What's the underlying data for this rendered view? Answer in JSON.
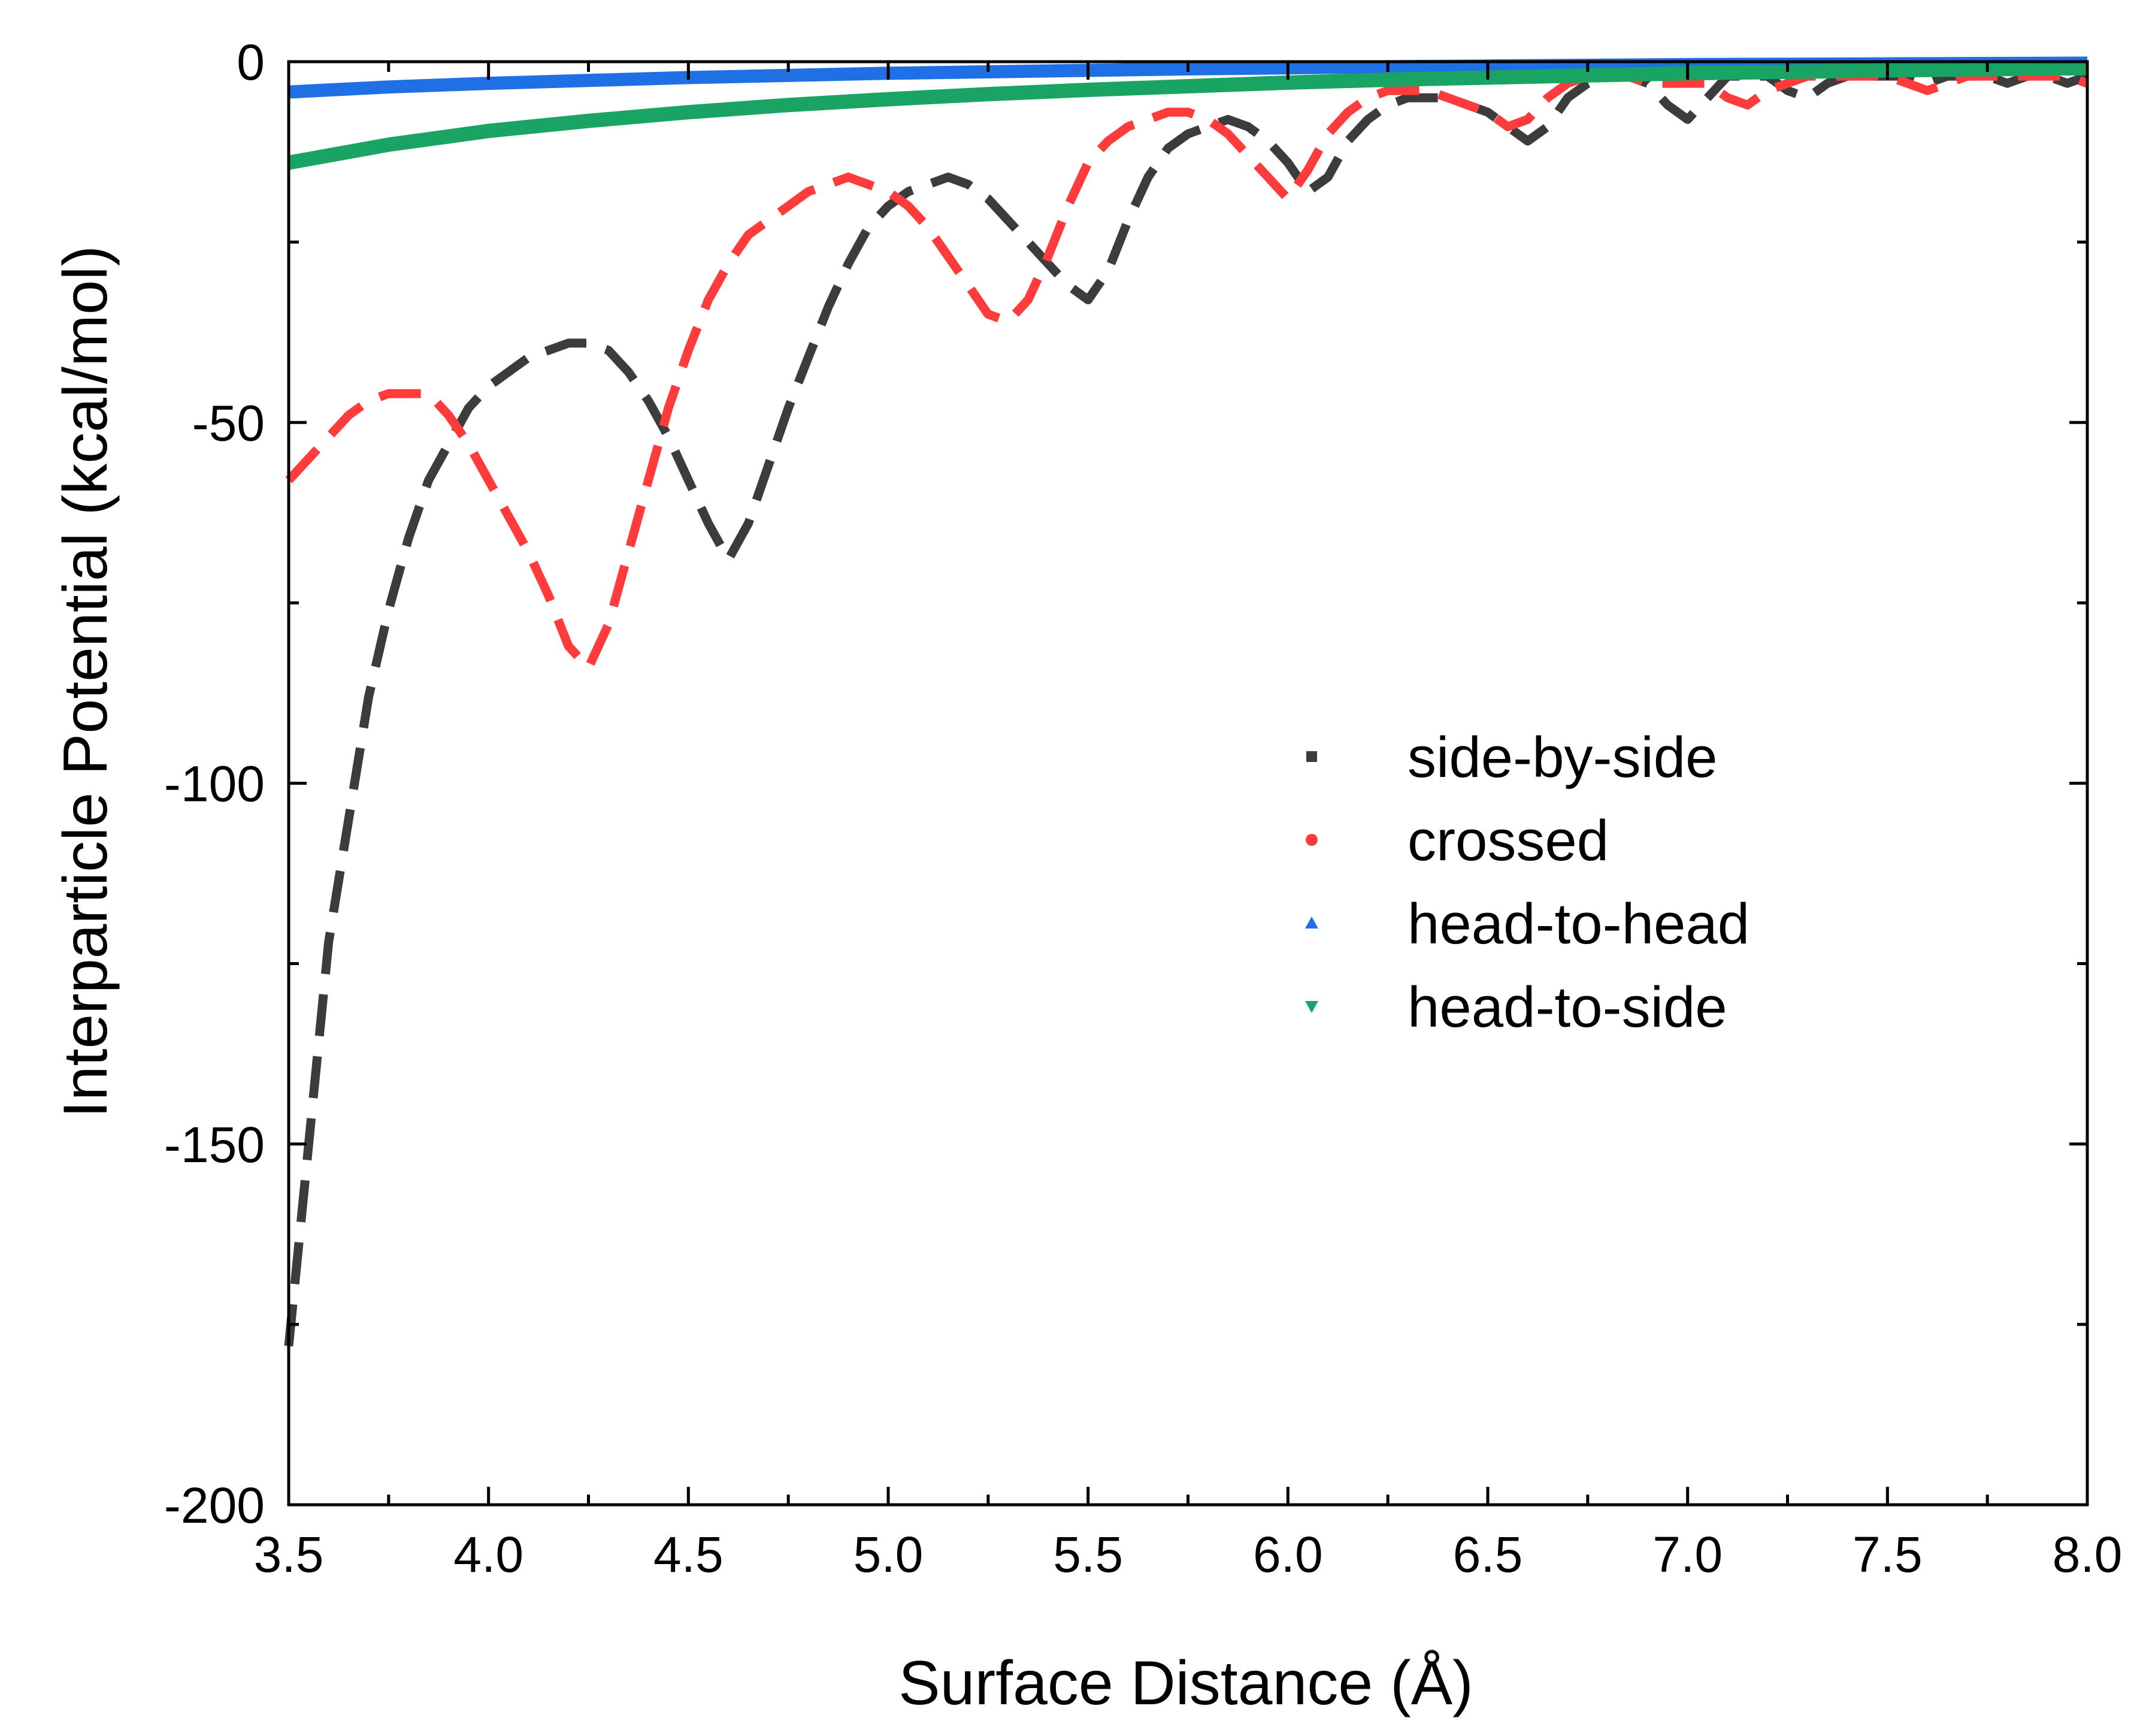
{
  "chart_data": {
    "type": "scatter",
    "title": "",
    "xlabel": "Surface Distance (Å)",
    "ylabel": "Interparticle Potential (kcal/mol)",
    "xlim": [
      3.5,
      8.0
    ],
    "ylim": [
      -200,
      0
    ],
    "xticks": [
      "3.5",
      "4.0",
      "4.5",
      "5.0",
      "5.5",
      "6.0",
      "6.5",
      "7.0",
      "7.5",
      "8.0"
    ],
    "yticks": [
      "0",
      "-50",
      "-100",
      "-150",
      "-200"
    ],
    "grid": false,
    "legend_position": "center-right",
    "series": [
      {
        "name": "side-by-side",
        "color": "#3c3c3c",
        "marker": "square",
        "points": [
          [
            3.5,
            -178
          ],
          [
            3.55,
            -150
          ],
          [
            3.6,
            -122
          ],
          [
            3.65,
            -105
          ],
          [
            3.7,
            -88
          ],
          [
            3.75,
            -76
          ],
          [
            3.8,
            -66
          ],
          [
            3.85,
            -58
          ],
          [
            3.9,
            -53
          ],
          [
            3.95,
            -48
          ],
          [
            4.0,
            -45
          ],
          [
            4.05,
            -43
          ],
          [
            4.1,
            -41
          ],
          [
            4.15,
            -40
          ],
          [
            4.2,
            -39
          ],
          [
            4.25,
            -39
          ],
          [
            4.3,
            -40
          ],
          [
            4.35,
            -43
          ],
          [
            4.4,
            -47
          ],
          [
            4.45,
            -52
          ],
          [
            4.5,
            -58
          ],
          [
            4.55,
            -64
          ],
          [
            4.6,
            -69
          ],
          [
            4.65,
            -64
          ],
          [
            4.7,
            -56
          ],
          [
            4.75,
            -48
          ],
          [
            4.8,
            -41
          ],
          [
            4.85,
            -34
          ],
          [
            4.9,
            -28
          ],
          [
            4.95,
            -23
          ],
          [
            5.0,
            -20
          ],
          [
            5.05,
            -18
          ],
          [
            5.1,
            -17
          ],
          [
            5.15,
            -16
          ],
          [
            5.2,
            -17
          ],
          [
            5.25,
            -19
          ],
          [
            5.3,
            -22
          ],
          [
            5.35,
            -25
          ],
          [
            5.4,
            -28
          ],
          [
            5.45,
            -31
          ],
          [
            5.5,
            -33
          ],
          [
            5.55,
            -29
          ],
          [
            5.6,
            -22
          ],
          [
            5.65,
            -16
          ],
          [
            5.7,
            -12
          ],
          [
            5.75,
            -10
          ],
          [
            5.8,
            -9
          ],
          [
            5.85,
            -8
          ],
          [
            5.9,
            -9
          ],
          [
            5.95,
            -11
          ],
          [
            6.0,
            -14
          ],
          [
            6.05,
            -18
          ],
          [
            6.1,
            -16
          ],
          [
            6.15,
            -11
          ],
          [
            6.2,
            -8
          ],
          [
            6.25,
            -6
          ],
          [
            6.3,
            -5
          ],
          [
            6.35,
            -5
          ],
          [
            6.4,
            -5
          ],
          [
            6.45,
            -6
          ],
          [
            6.5,
            -7
          ],
          [
            6.55,
            -9
          ],
          [
            6.6,
            -11
          ],
          [
            6.65,
            -9
          ],
          [
            6.7,
            -5
          ],
          [
            6.75,
            -3
          ],
          [
            6.8,
            -2
          ],
          [
            6.85,
            -2
          ],
          [
            6.9,
            -3
          ],
          [
            6.95,
            -6
          ],
          [
            7.0,
            -8
          ],
          [
            7.05,
            -5
          ],
          [
            7.1,
            -2
          ],
          [
            7.15,
            -2
          ],
          [
            7.2,
            -2
          ],
          [
            7.25,
            -4
          ],
          [
            7.3,
            -5
          ],
          [
            7.35,
            -3
          ],
          [
            7.4,
            -2
          ],
          [
            7.45,
            -2
          ],
          [
            7.5,
            -2
          ],
          [
            7.55,
            -2
          ],
          [
            7.6,
            -3
          ],
          [
            7.65,
            -2
          ],
          [
            7.7,
            -2
          ],
          [
            7.75,
            -2
          ],
          [
            7.8,
            -3
          ],
          [
            7.85,
            -2
          ],
          [
            7.9,
            -2
          ],
          [
            7.95,
            -3
          ],
          [
            8.0,
            -2
          ]
        ]
      },
      {
        "name": "crossed",
        "color": "#ff3b3b",
        "marker": "circle",
        "points": [
          [
            3.5,
            -58
          ],
          [
            3.55,
            -55
          ],
          [
            3.6,
            -52
          ],
          [
            3.65,
            -49
          ],
          [
            3.7,
            -47
          ],
          [
            3.75,
            -46
          ],
          [
            3.8,
            -46
          ],
          [
            3.85,
            -46
          ],
          [
            3.9,
            -49
          ],
          [
            3.95,
            -53
          ],
          [
            4.0,
            -58
          ],
          [
            4.05,
            -63
          ],
          [
            4.1,
            -68
          ],
          [
            4.15,
            -74
          ],
          [
            4.2,
            -81
          ],
          [
            4.25,
            -84
          ],
          [
            4.3,
            -78
          ],
          [
            4.35,
            -68
          ],
          [
            4.4,
            -58
          ],
          [
            4.45,
            -48
          ],
          [
            4.5,
            -40
          ],
          [
            4.55,
            -33
          ],
          [
            4.6,
            -28
          ],
          [
            4.65,
            -24
          ],
          [
            4.7,
            -22
          ],
          [
            4.75,
            -20
          ],
          [
            4.8,
            -18
          ],
          [
            4.85,
            -17
          ],
          [
            4.9,
            -16
          ],
          [
            4.95,
            -17
          ],
          [
            5.0,
            -18
          ],
          [
            5.05,
            -20
          ],
          [
            5.1,
            -23
          ],
          [
            5.15,
            -27
          ],
          [
            5.2,
            -31
          ],
          [
            5.25,
            -35
          ],
          [
            5.3,
            -36
          ],
          [
            5.35,
            -33
          ],
          [
            5.4,
            -27
          ],
          [
            5.45,
            -20
          ],
          [
            5.5,
            -14
          ],
          [
            5.55,
            -11
          ],
          [
            5.6,
            -9
          ],
          [
            5.65,
            -8
          ],
          [
            5.7,
            -7
          ],
          [
            5.75,
            -7
          ],
          [
            5.8,
            -8
          ],
          [
            5.85,
            -10
          ],
          [
            5.9,
            -13
          ],
          [
            5.95,
            -16
          ],
          [
            6.0,
            -19
          ],
          [
            6.05,
            -15
          ],
          [
            6.1,
            -10
          ],
          [
            6.15,
            -7
          ],
          [
            6.2,
            -5
          ],
          [
            6.25,
            -4
          ],
          [
            6.3,
            -4
          ],
          [
            6.35,
            -4
          ],
          [
            6.4,
            -5
          ],
          [
            6.45,
            -6
          ],
          [
            6.5,
            -7
          ],
          [
            6.55,
            -9
          ],
          [
            6.6,
            -8
          ],
          [
            6.65,
            -5
          ],
          [
            6.7,
            -3
          ],
          [
            6.75,
            -2
          ],
          [
            6.8,
            -2
          ],
          [
            6.85,
            -2
          ],
          [
            6.9,
            -3
          ],
          [
            6.95,
            -3
          ],
          [
            7.0,
            -3
          ],
          [
            7.05,
            -3
          ],
          [
            7.1,
            -5
          ],
          [
            7.15,
            -6
          ],
          [
            7.2,
            -4
          ],
          [
            7.25,
            -3
          ],
          [
            7.3,
            -2
          ],
          [
            7.35,
            -2
          ],
          [
            7.4,
            -2
          ],
          [
            7.45,
            -2
          ],
          [
            7.5,
            -2
          ],
          [
            7.55,
            -3
          ],
          [
            7.6,
            -4
          ],
          [
            7.65,
            -3
          ],
          [
            7.7,
            -2
          ],
          [
            7.75,
            -2
          ],
          [
            7.8,
            -2
          ],
          [
            7.85,
            -2
          ],
          [
            7.9,
            -2
          ],
          [
            7.95,
            -2
          ],
          [
            8.0,
            -3
          ]
        ]
      },
      {
        "name": "head-to-head",
        "color": "#1f6fe5",
        "marker": "triangle-up",
        "points": [
          [
            3.5,
            -4.2
          ],
          [
            3.75,
            -3.5
          ],
          [
            4.0,
            -3.0
          ],
          [
            4.25,
            -2.6
          ],
          [
            4.5,
            -2.2
          ],
          [
            4.75,
            -1.9
          ],
          [
            5.0,
            -1.6
          ],
          [
            5.25,
            -1.4
          ],
          [
            5.5,
            -1.2
          ],
          [
            5.75,
            -1.0
          ],
          [
            6.0,
            -0.85
          ],
          [
            6.25,
            -0.7
          ],
          [
            6.5,
            -0.6
          ],
          [
            6.75,
            -0.5
          ],
          [
            7.0,
            -0.4
          ],
          [
            7.25,
            -0.35
          ],
          [
            7.5,
            -0.3
          ],
          [
            7.75,
            -0.25
          ],
          [
            8.0,
            -0.2
          ]
        ]
      },
      {
        "name": "head-to-side",
        "color": "#1aa463",
        "marker": "triangle-down",
        "points": [
          [
            3.5,
            -14
          ],
          [
            3.75,
            -11.5
          ],
          [
            4.0,
            -9.6
          ],
          [
            4.25,
            -8.2
          ],
          [
            4.5,
            -7.0
          ],
          [
            4.75,
            -6.0
          ],
          [
            5.0,
            -5.2
          ],
          [
            5.25,
            -4.5
          ],
          [
            5.5,
            -3.9
          ],
          [
            5.75,
            -3.4
          ],
          [
            6.0,
            -2.9
          ],
          [
            6.25,
            -2.5
          ],
          [
            6.5,
            -2.2
          ],
          [
            6.75,
            -1.9
          ],
          [
            7.0,
            -1.6
          ],
          [
            7.25,
            -1.4
          ],
          [
            7.5,
            -1.2
          ],
          [
            7.75,
            -1.05
          ],
          [
            8.0,
            -0.9
          ]
        ]
      }
    ]
  }
}
